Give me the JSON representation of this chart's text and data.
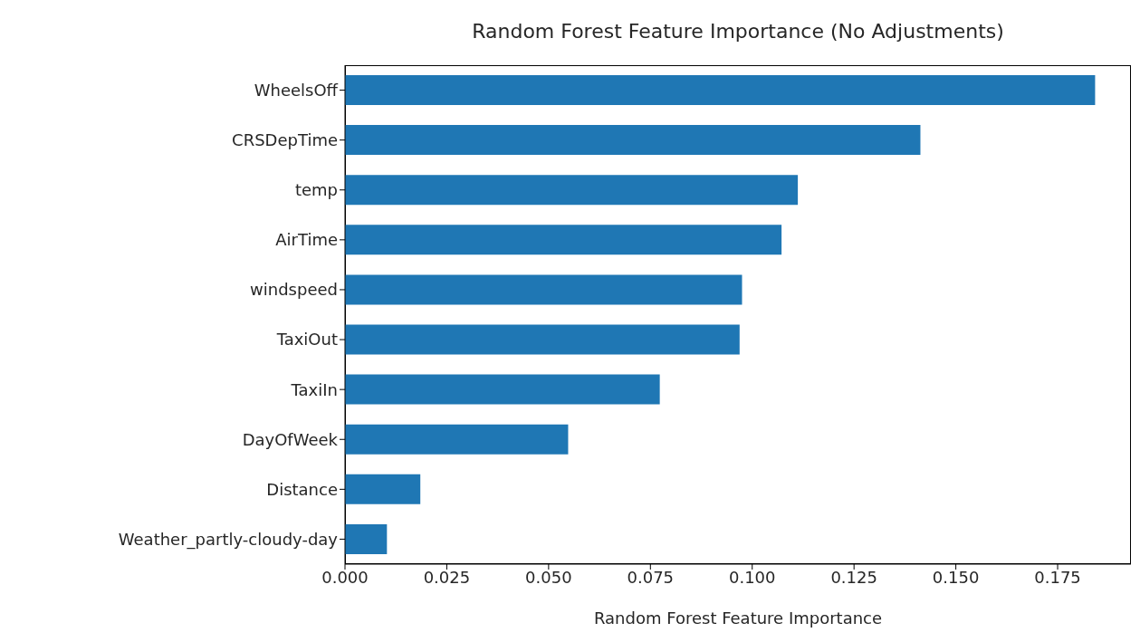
{
  "chart_data": {
    "type": "bar",
    "orientation": "horizontal",
    "title": "Random Forest Feature Importance (No Adjustments)",
    "xlabel": "Random Forest Feature Importance",
    "categories": [
      "WheelsOff",
      "CRSDepTime",
      "temp",
      "AirTime",
      "windspeed",
      "TaxiOut",
      "TaxiIn",
      "DayOfWeek",
      "Distance",
      "Weather_partly-cloudy-day"
    ],
    "values": [
      0.1842,
      0.1413,
      0.1112,
      0.1072,
      0.0975,
      0.0969,
      0.0773,
      0.0548,
      0.0185,
      0.0103
    ],
    "color": "#1f77b4",
    "xlim": [
      0,
      0.193
    ],
    "xticks": [
      {
        "value": 0,
        "label": "0.000"
      },
      {
        "value": 0.025,
        "label": "0.025"
      },
      {
        "value": 0.05,
        "label": "0.050"
      },
      {
        "value": 0.075,
        "label": "0.075"
      },
      {
        "value": 0.1,
        "label": "0.100"
      },
      {
        "value": 0.125,
        "label": "0.125"
      },
      {
        "value": 0.15,
        "label": "0.150"
      },
      {
        "value": 0.175,
        "label": "0.175"
      }
    ],
    "grid": false,
    "legend": false
  }
}
